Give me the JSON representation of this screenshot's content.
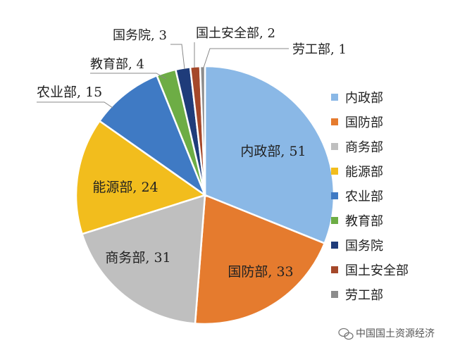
{
  "chart_data": {
    "type": "pie",
    "title": "",
    "slices": [
      {
        "label": "内政部",
        "value": 51,
        "color": "#8ab8e6",
        "data_label": "内政部, 51"
      },
      {
        "label": "国防部",
        "value": 33,
        "color": "#e57b2e",
        "data_label": "国防部, 33"
      },
      {
        "label": "商务部",
        "value": 31,
        "color": "#bfbfbf",
        "data_label": "商务部, 31"
      },
      {
        "label": "能源部",
        "value": 24,
        "color": "#f2bd1d",
        "data_label": "能源部, 24"
      },
      {
        "label": "农业部",
        "value": 15,
        "color": "#3f7ac4",
        "data_label": "农业部, 15"
      },
      {
        "label": "教育部",
        "value": 4,
        "color": "#6dad45",
        "data_label": "教育部, 4"
      },
      {
        "label": "国务院",
        "value": 3,
        "color": "#1f3c7a",
        "data_label": "国务院, 3"
      },
      {
        "label": "国土安全部",
        "value": 2,
        "color": "#a5482a",
        "data_label": "国土安全部, 2"
      },
      {
        "label": "劳工部",
        "value": 1,
        "color": "#8c8c8c",
        "data_label": "劳工部, 1"
      }
    ],
    "legend_position": "right"
  },
  "watermark": {
    "text": "中国国土资源经济",
    "icon": "wechat-icon"
  }
}
